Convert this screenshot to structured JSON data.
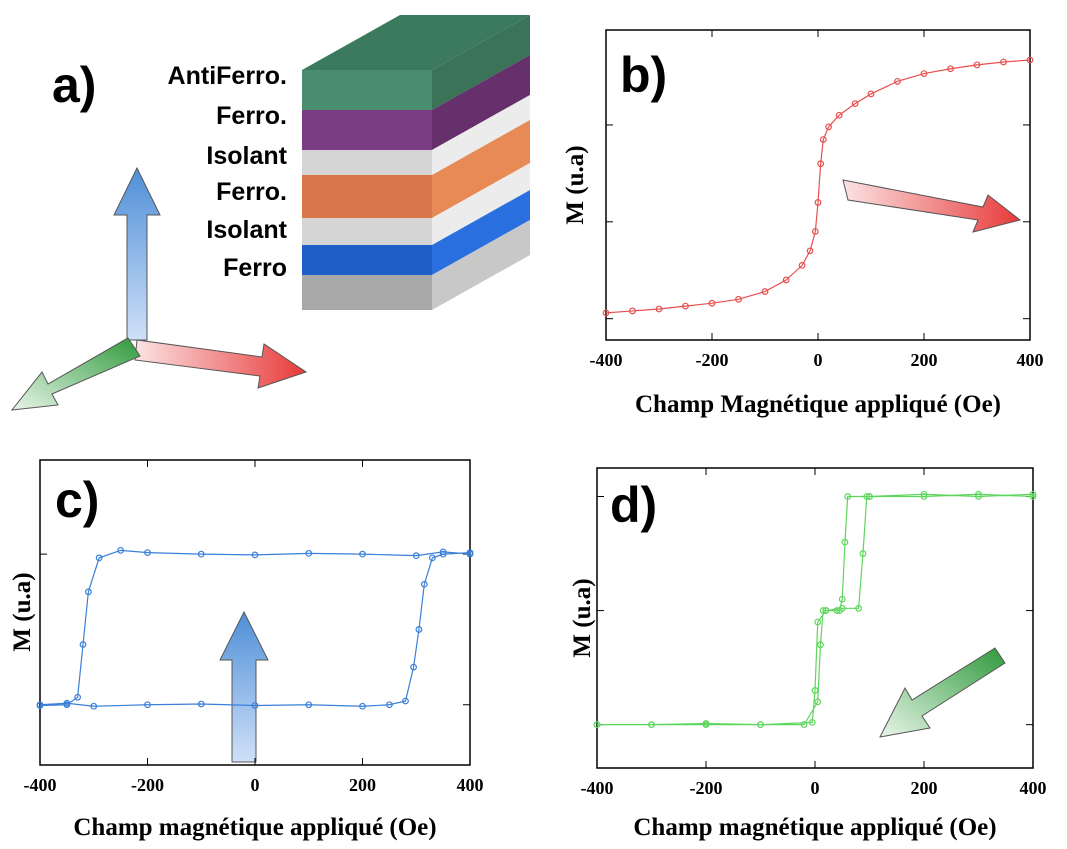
{
  "panel_a": {
    "label": "a)",
    "layers": [
      "AntiFerro.",
      "Ferro.",
      "Isolant",
      "Ferro.",
      "Isolant",
      "Ferro"
    ]
  },
  "chart_data": [
    {
      "type": "line",
      "label": "b)",
      "x_label": "Champ Magnétique appliqué (Oe)",
      "y_label": "M (u.a)",
      "xlim": [
        -400,
        400
      ],
      "xticks": [
        -400,
        -200,
        0,
        200,
        400
      ],
      "ylim": [
        -1.22,
        1.98
      ],
      "yticks": [
        -1,
        0,
        1
      ],
      "series": [
        {
          "color": "#e8504f",
          "x": [
            -400,
            -350,
            -300,
            -250,
            -200,
            -150,
            -100,
            -60,
            -30,
            -15,
            -5,
            0,
            5,
            10,
            20,
            40,
            70,
            100,
            150,
            200,
            250,
            300,
            350,
            400
          ],
          "values": [
            -0.94,
            -0.92,
            -0.9,
            -0.87,
            -0.84,
            -0.8,
            -0.72,
            -0.6,
            -0.45,
            -0.3,
            -0.1,
            0.2,
            0.6,
            0.85,
            0.98,
            1.1,
            1.22,
            1.32,
            1.45,
            1.53,
            1.58,
            1.62,
            1.65,
            1.67
          ]
        }
      ]
    },
    {
      "type": "line",
      "label": "c)",
      "x_label": "Champ magnétique appliqué (Oe)",
      "y_label": "M (u.a)",
      "xlim": [
        -400,
        400
      ],
      "xticks": [
        -400,
        -200,
        0,
        200,
        400
      ],
      "ylim": [
        -1.8,
        2.25
      ],
      "yticks": [
        -1,
        1
      ],
      "series": [
        {
          "color": "#3a7fd8",
          "x": [
            -400,
            -350,
            -300,
            -200,
            -100,
            0,
            100,
            200,
            250,
            280,
            295,
            305,
            315,
            330,
            350,
            400,
            400,
            350,
            300,
            200,
            100,
            0,
            -100,
            -200,
            -250,
            -290,
            -310,
            -320,
            -330,
            -350,
            -400
          ],
          "values": [
            -1,
            -0.98,
            -1.02,
            -1,
            -0.99,
            -1.01,
            -1,
            -1.02,
            -1,
            -0.95,
            -0.5,
            0,
            0.6,
            0.95,
            1,
            1.02,
            1,
            1.03,
            0.98,
            1,
            1.01,
            0.99,
            1,
            1.02,
            1.05,
            0.95,
            0.5,
            -0.2,
            -0.9,
            -1,
            -1.01
          ]
        }
      ]
    },
    {
      "type": "line",
      "label": "d)",
      "x_label": "Champ magnétique appliqué (Oe)",
      "y_label": "M (u.a)",
      "xlim": [
        -400,
        400
      ],
      "xticks": [
        -400,
        -200,
        0,
        200,
        400
      ],
      "ylim": [
        -0.38,
        2.25
      ],
      "yticks": [
        0,
        1,
        2
      ],
      "series": [
        {
          "color": "#5ed65e",
          "x": [
            -400,
            -300,
            -200,
            -100,
            -20,
            5,
            10,
            15,
            20,
            50,
            80,
            88,
            95,
            100,
            200,
            300,
            400,
            400,
            300,
            200,
            100,
            60,
            55,
            50,
            45,
            40,
            20,
            5,
            0,
            -5,
            -100,
            -200,
            -300,
            -400
          ],
          "values": [
            0,
            0,
            0,
            0,
            0,
            0.2,
            0.7,
            1,
            1,
            1.02,
            1.02,
            1.5,
            2,
            2,
            2.02,
            2,
            2.02,
            2,
            2.02,
            2,
            2,
            2,
            1.6,
            1.1,
            1,
            1,
            1,
            0.9,
            0.3,
            0.02,
            0,
            0.01,
            0,
            0
          ]
        }
      ]
    }
  ]
}
